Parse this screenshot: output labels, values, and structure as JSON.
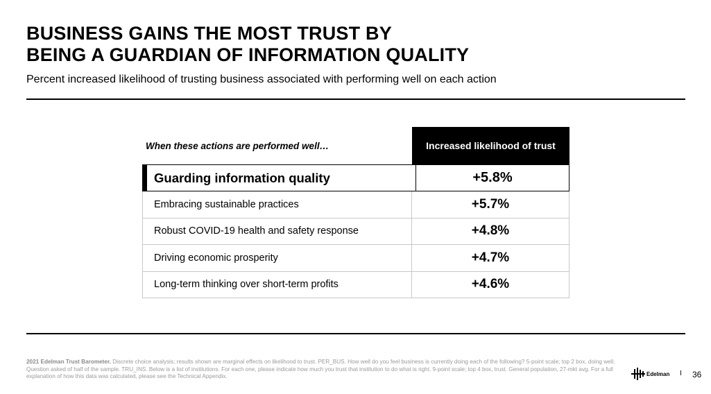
{
  "header": {
    "title_line1": "BUSINESS GAINS THE MOST TRUST BY",
    "title_line2": "BEING A GUARDIAN OF INFORMATION QUALITY",
    "subtitle": "Percent increased likelihood of trusting business associated with performing well on each action"
  },
  "table": {
    "col_left_header": "When these actions are performed well…",
    "col_right_header": "Increased likelihood of trust",
    "rows": [
      {
        "label": "Guarding information quality",
        "value": "+5.8%"
      },
      {
        "label": "Embracing sustainable practices",
        "value": "+5.7%"
      },
      {
        "label": "Robust COVID-19 health and safety response",
        "value": "+4.8%"
      },
      {
        "label": "Driving economic prosperity",
        "value": "+4.7%"
      },
      {
        "label": "Long-term thinking over short-term profits",
        "value": "+4.6%"
      }
    ]
  },
  "footer": {
    "source_bold": "2021 Edelman Trust Barometer.",
    "source_text": "Discrete choice analysis; results shown are marginal effects on likelihood to trust. PER_BUS. How well do you feel business is currently doing each of the following? 5-point scale; top 2 box, doing well. Question asked of half of the sample. TRU_INS. Below is a list of institutions. For each one, please indicate how much you trust that institution to do what is right. 9-point scale; top 4 box, trust. General population, 27-mkt avg. For a full explanation of how this data was calculated, please see the Technical Appendix.",
    "logo_text": "Edelman",
    "separator": "I",
    "page_number": "36"
  }
}
